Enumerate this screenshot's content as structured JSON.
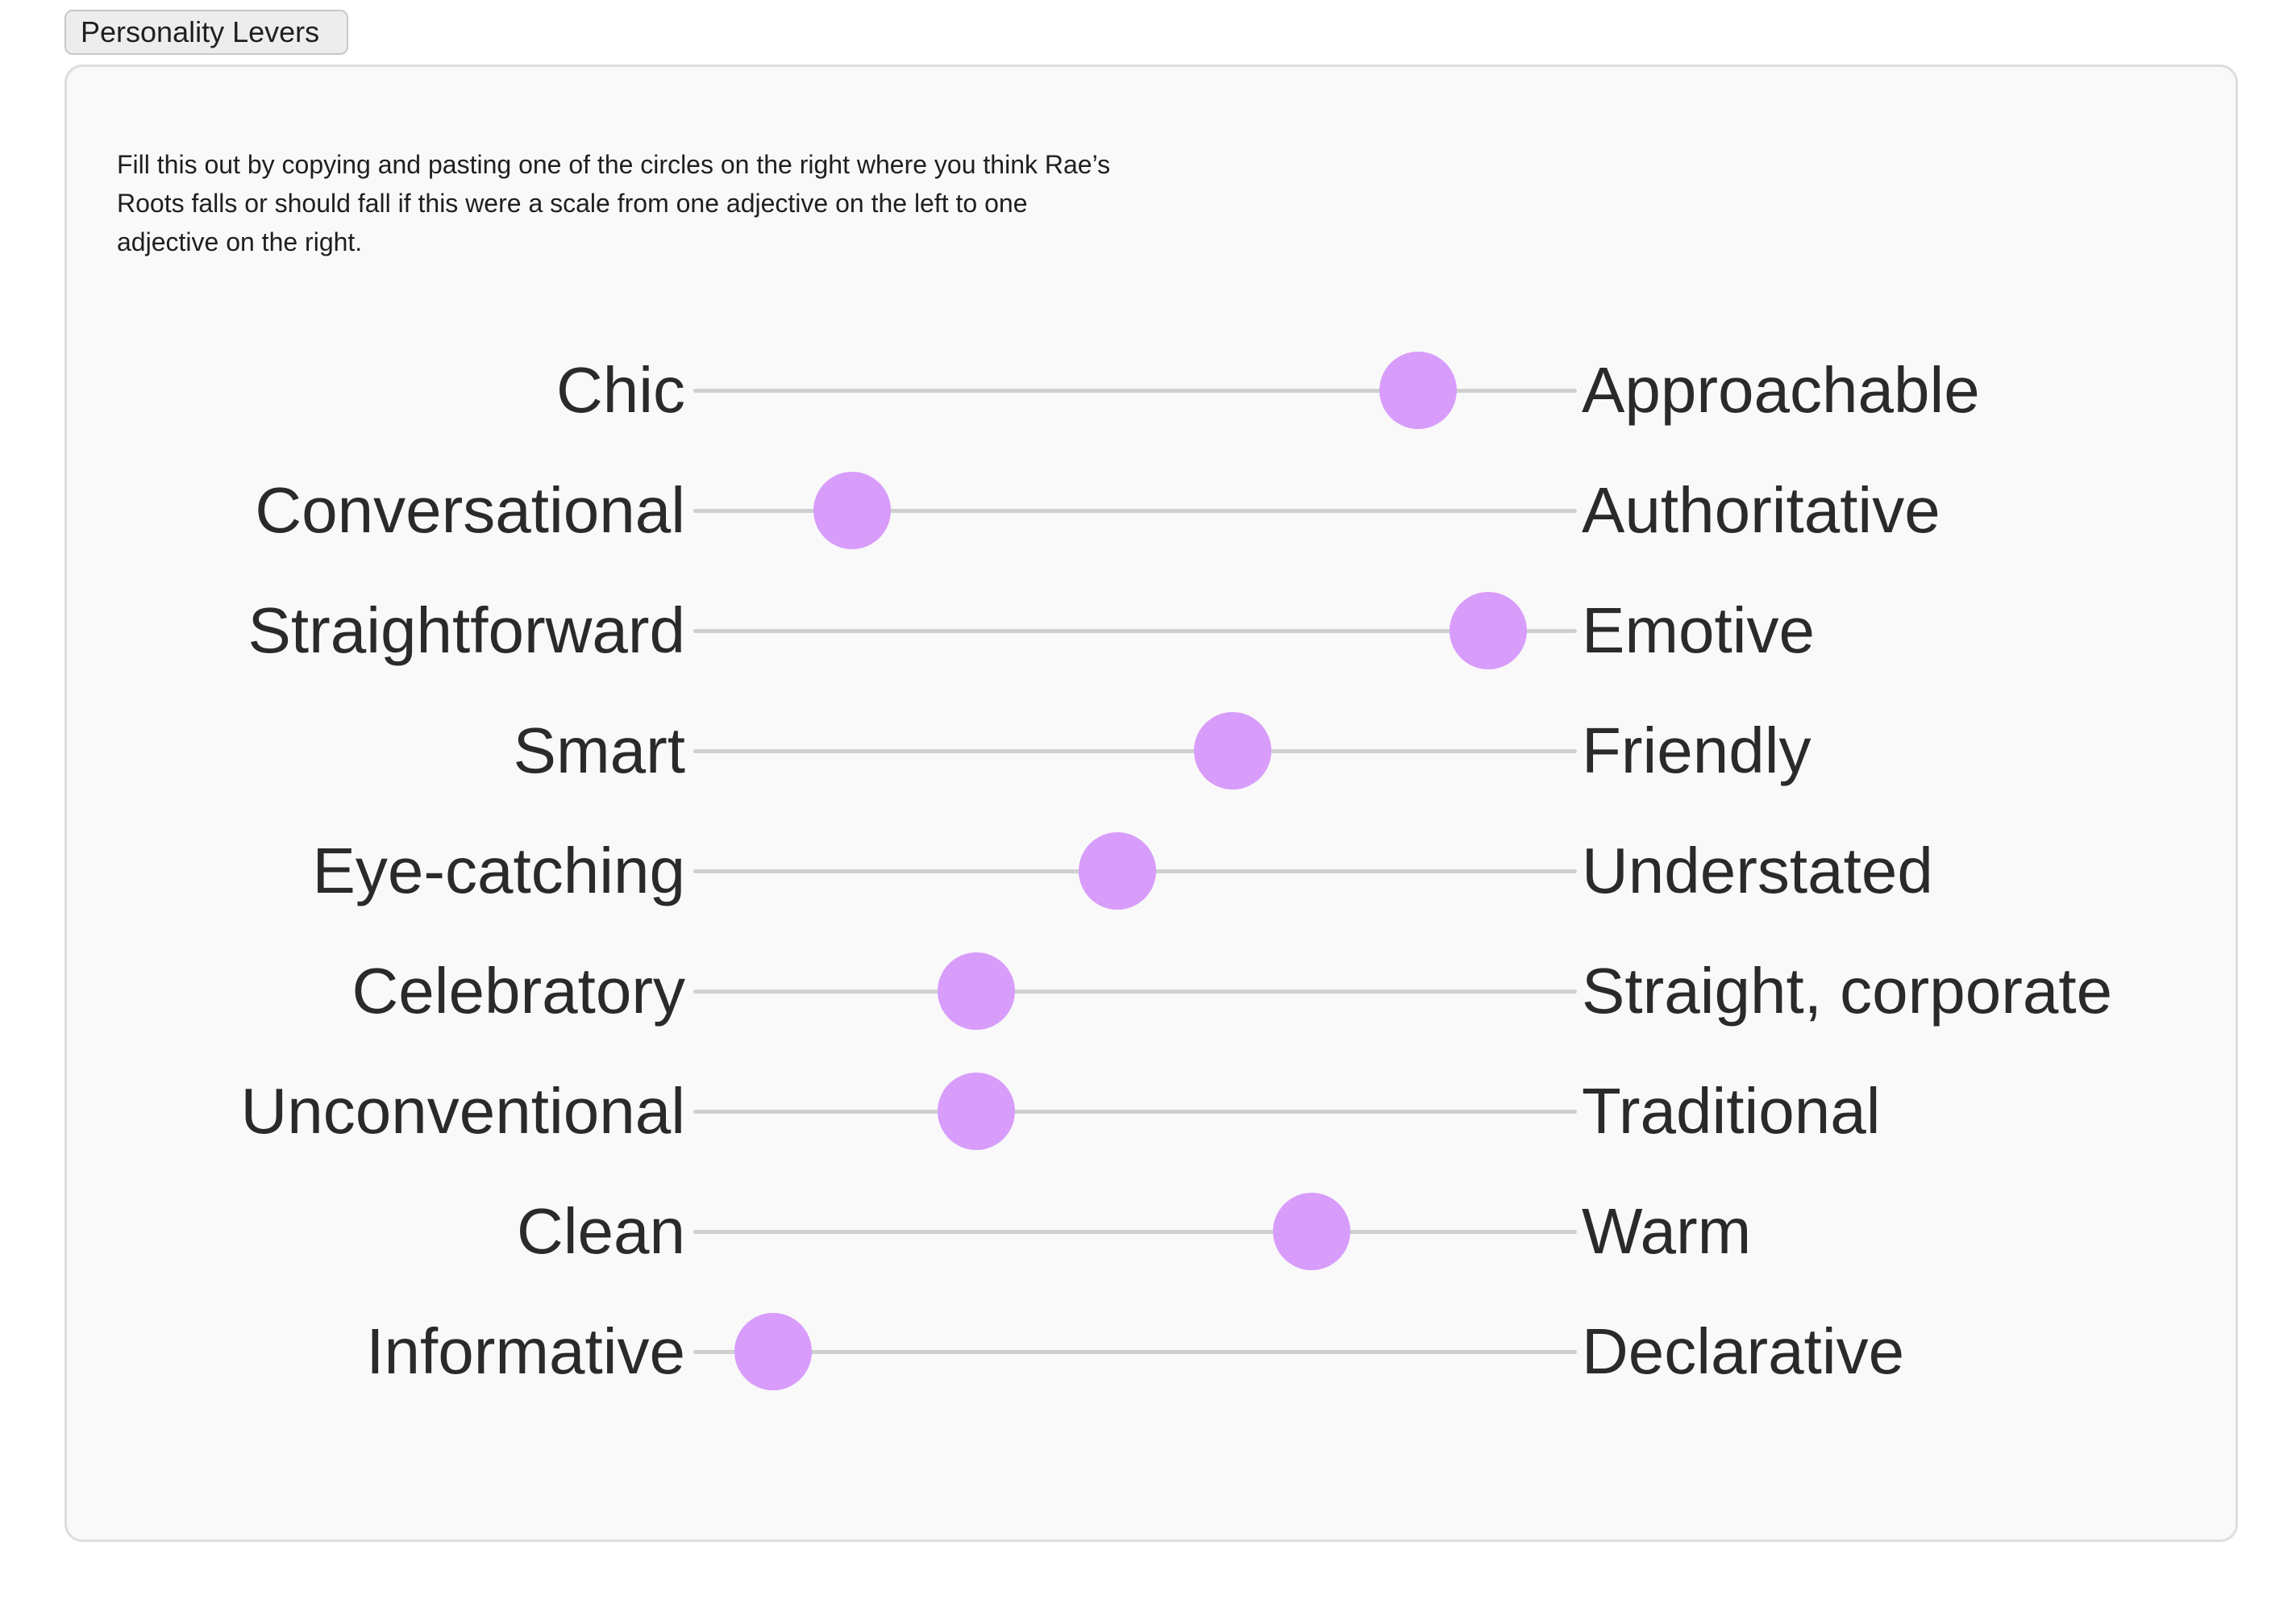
{
  "tab": {
    "label": "Personality Levers"
  },
  "instructions": "Fill this out by copying and pasting one of the circles on the right where you think Rae’s Roots falls or should fall if this were a scale from one adjective on the left to one adjective on the right.",
  "accent_color": "#d89cfb",
  "levers": [
    {
      "left": "Chic",
      "right": "Approachable",
      "position": 0.82
    },
    {
      "left": "Conversational",
      "right": "Authoritative",
      "position": 0.18
    },
    {
      "left": "Straightforward",
      "right": "Emotive",
      "position": 0.9
    },
    {
      "left": "Smart",
      "right": "Friendly",
      "position": 0.61
    },
    {
      "left": "Eye-catching",
      "right": "Understated",
      "position": 0.48
    },
    {
      "left": "Celebratory",
      "right": "Straight, corporate",
      "position": 0.32
    },
    {
      "left": "Unconventional",
      "right": "Traditional",
      "position": 0.32
    },
    {
      "left": "Clean",
      "right": "Warm",
      "position": 0.7
    },
    {
      "left": "Informative",
      "right": "Declarative",
      "position": 0.09
    }
  ]
}
